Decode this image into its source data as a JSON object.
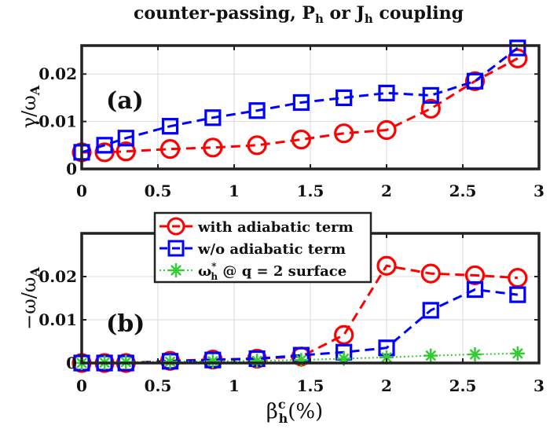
{
  "title": "counter-passing, Pₕ or Jₕ coupling",
  "title_main": "counter-passing, ",
  "title_p": "P",
  "title_or": " or ",
  "title_j": "J",
  "title_sub": "h",
  "title_end": " coupling",
  "colors": {
    "with": "#ff0000",
    "wo": "#0000ff",
    "omega": "#33cc33",
    "frame": "#222222"
  },
  "chart_data": [
    {
      "type": "line",
      "panel_label": "(a)",
      "ylabel_sym": "γ/ω",
      "ylabel_sub": "A",
      "xlim": [
        0,
        3
      ],
      "ylim": [
        0,
        0.026
      ],
      "x_ticks": [
        "0",
        "0.5",
        "1",
        "1.5",
        "2",
        "2.5",
        "3"
      ],
      "y_ticks": [
        "0",
        "0.01",
        "0.02"
      ],
      "grid": true,
      "series": [
        {
          "name": "with adiabatic term",
          "marker": "circle",
          "color": "#ff0000",
          "x": [
            0,
            0.15,
            0.29,
            0.58,
            0.86,
            1.15,
            1.44,
            1.72,
            2.0,
            2.29,
            2.58,
            2.86
          ],
          "y": [
            0.0035,
            0.0035,
            0.0037,
            0.0042,
            0.0045,
            0.005,
            0.0062,
            0.0075,
            0.0082,
            0.0127,
            0.0185,
            0.0233
          ]
        },
        {
          "name": "w/o adiabatic term",
          "marker": "square",
          "color": "#0000ff",
          "x": [
            0,
            0.15,
            0.29,
            0.58,
            0.86,
            1.15,
            1.44,
            1.72,
            2.0,
            2.29,
            2.58,
            2.86
          ],
          "y": [
            0.0035,
            0.005,
            0.0065,
            0.009,
            0.0108,
            0.0123,
            0.014,
            0.015,
            0.016,
            0.0155,
            0.0185,
            0.0255
          ]
        }
      ]
    },
    {
      "type": "line",
      "panel_label": "(b)",
      "ylabel_sym": "−ω/ω",
      "ylabel_sub": "A",
      "xlim": [
        0,
        3
      ],
      "ylim": [
        0,
        0.03
      ],
      "x_ticks": [
        "0",
        "0.5",
        "1",
        "1.5",
        "2",
        "2.5",
        "3"
      ],
      "y_ticks": [
        "0",
        "0.01",
        "0.02"
      ],
      "xlabel_sym": "β",
      "xlabel_sup": "c",
      "xlabel_sub": "h",
      "xlabel_unit": "(%)",
      "grid": true,
      "legend_position": "top",
      "series": [
        {
          "name": "with adiabatic term",
          "marker": "circle",
          "color": "#ff0000",
          "x": [
            0,
            0.15,
            0.29,
            0.58,
            0.86,
            1.15,
            1.44,
            1.72,
            2.0,
            2.29,
            2.58,
            2.86
          ],
          "y": [
            0.0,
            0.0,
            0.0,
            0.0005,
            0.0008,
            0.001,
            0.0015,
            0.0065,
            0.0225,
            0.0207,
            0.0203,
            0.0197
          ]
        },
        {
          "name": "w/o adiabatic term",
          "marker": "square",
          "color": "#0000ff",
          "x": [
            0,
            0.15,
            0.29,
            0.58,
            0.86,
            1.15,
            1.44,
            1.72,
            2.0,
            2.29,
            2.58,
            2.86
          ],
          "y": [
            0.0,
            0.0,
            0.0,
            0.0004,
            0.0007,
            0.001,
            0.0018,
            0.0025,
            0.0035,
            0.0122,
            0.017,
            0.0158
          ]
        },
        {
          "name": "ω*ₕ @ q = 2 surface",
          "marker": "asterisk",
          "color": "#33cc33",
          "x": [
            0,
            0.15,
            0.29,
            0.58,
            0.86,
            1.15,
            1.44,
            1.72,
            2.0,
            2.29,
            2.58,
            2.86
          ],
          "y": [
            0.0,
            0.0001,
            0.0002,
            0.0003,
            0.0004,
            0.0005,
            0.0007,
            0.001,
            0.0013,
            0.0017,
            0.002,
            0.0022
          ]
        }
      ]
    }
  ],
  "legend": [
    {
      "label_main": "with adiabatic term"
    },
    {
      "label_main": "w/o adiabatic term"
    },
    {
      "label_sym": "ω",
      "label_sup": "*",
      "label_sub": "h",
      "label_rest": " @ q = 2 surface"
    }
  ]
}
